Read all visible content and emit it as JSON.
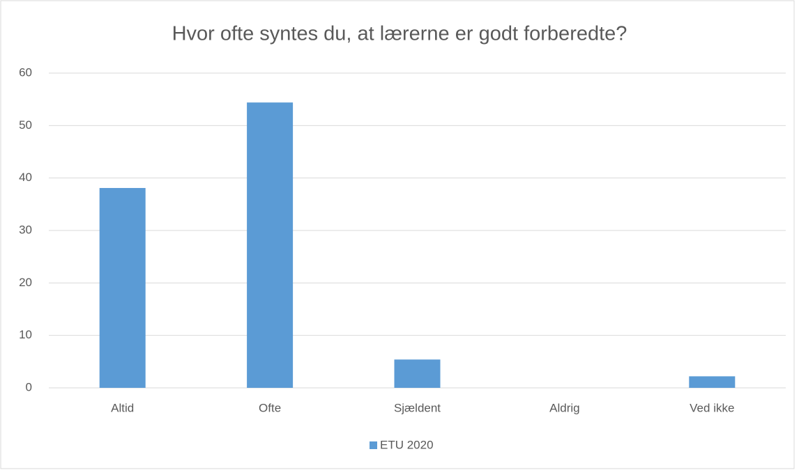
{
  "chart_data": {
    "type": "bar",
    "title": "Hvor ofte syntes du, at lærerne er godt forberedte?",
    "categories": [
      "Altid",
      "Ofte",
      "Sjældent",
      "Aldrig",
      "Ved ikke"
    ],
    "series": [
      {
        "name": "ETU 2020",
        "color": "#5b9bd5",
        "values": [
          38.1,
          54.4,
          5.4,
          0,
          2.2
        ]
      }
    ],
    "ylim": [
      0,
      60
    ],
    "yticks": [
      0,
      10,
      20,
      30,
      40,
      50,
      60
    ],
    "grid": true,
    "legend": "bottom"
  }
}
